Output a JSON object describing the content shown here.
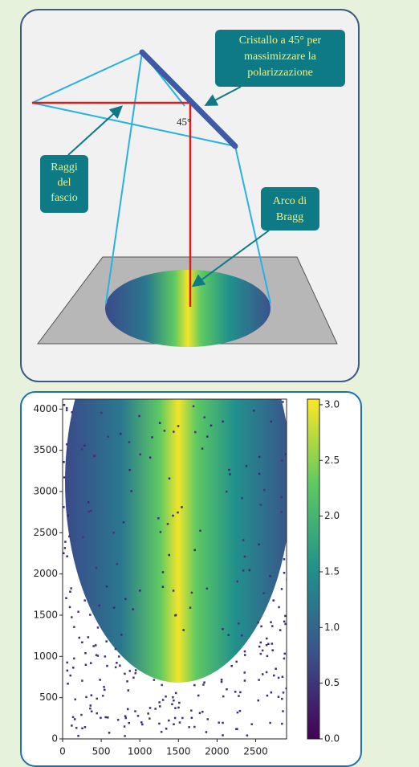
{
  "diagram": {
    "crystal_label": [
      "Cristallo a 45° per",
      "massimizzare la",
      "polarizzazione"
    ],
    "angle_label": "45°",
    "beam_label": [
      "Raggi",
      "del",
      "fascio"
    ],
    "bragg_label": [
      "Arco di",
      "Bragg"
    ]
  },
  "chart_data": {
    "type": "heatmap",
    "xlim": [
      0,
      2900
    ],
    "ylim": [
      0,
      4120
    ],
    "xticks": [
      0,
      500,
      1000,
      1500,
      2000,
      2500
    ],
    "yticks": [
      0,
      500,
      1000,
      1500,
      2000,
      2500,
      3000,
      3500,
      4000
    ],
    "clim": [
      0,
      3.05
    ],
    "cticks": [
      {
        "value": 0,
        "label": "0.0"
      },
      0.5,
      {
        "value": 1,
        "label": "1.0"
      },
      1.5,
      {
        "value": 2,
        "label": "2.0"
      },
      2.5,
      {
        "value": 3,
        "label": "3.0"
      }
    ],
    "colormap": [
      "#440154",
      "#3b528b",
      "#21918c",
      "#5ec962",
      "#fde725"
    ]
  }
}
